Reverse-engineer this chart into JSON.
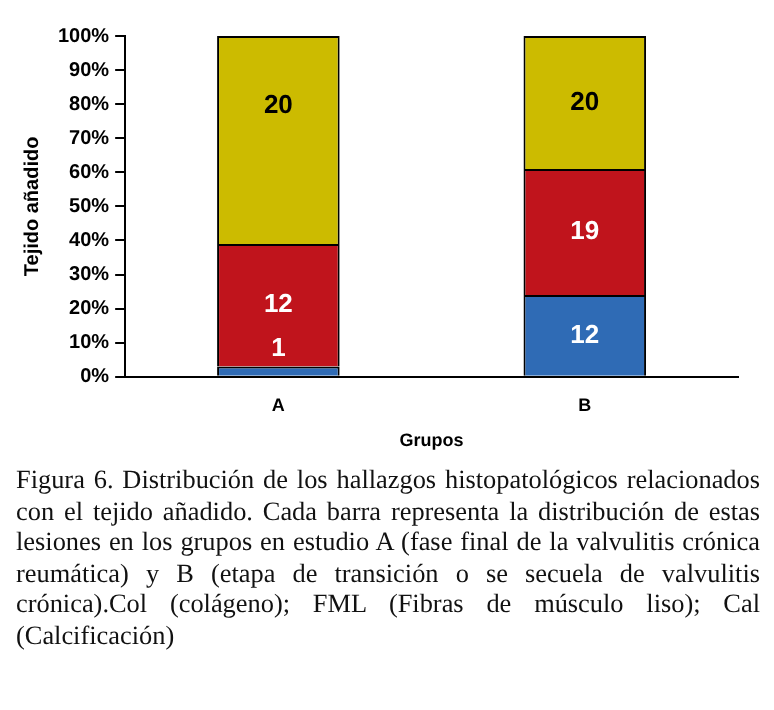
{
  "chart_data": {
    "type": "bar",
    "stacked": true,
    "xlabel": "Grupos",
    "ylabel": "Tejido añadido",
    "categories": [
      "A",
      "B"
    ],
    "series": [
      {
        "color": "#2f6bb5",
        "values": [
          3,
          24
        ]
      },
      {
        "color": "#c0141c",
        "values": [
          36,
          37
        ]
      },
      {
        "color": "#ccbb00",
        "values": [
          61,
          39
        ]
      }
    ],
    "ylim": [
      0,
      100
    ],
    "yticks": [
      {
        "value": 0,
        "label": "0%"
      },
      {
        "value": 10,
        "label": "10%"
      },
      {
        "value": 20,
        "label": "20%"
      },
      {
        "value": 30,
        "label": "30%"
      },
      {
        "value": 40,
        "label": "40%"
      },
      {
        "value": 50,
        "label": "50%"
      },
      {
        "value": 60,
        "label": "60%"
      },
      {
        "value": 70,
        "label": "70%"
      },
      {
        "value": 80,
        "label": "80%"
      },
      {
        "value": 90,
        "label": "90%"
      },
      {
        "value": 100,
        "label": "100%"
      }
    ],
    "grid": false,
    "legend": false,
    "annotations": [
      {
        "text": "1",
        "x": "A",
        "y": 3
      },
      {
        "text": "12",
        "x": "A",
        "y": 39
      },
      {
        "text": "20",
        "x": "A",
        "y": 100
      },
      {
        "text": "12",
        "x": "B",
        "y": 24
      },
      {
        "text": "19",
        "x": "B",
        "y": 61
      },
      {
        "text": "20",
        "x": "B",
        "y": 100
      },
      "Figura 6. Distribución de los hallazgos histopatológicos relacionados con el tejido añadido. Cada barra representa la distribución de estas lesiones en los grupos en estudio A (fase final de la valvulitis crónica reumática) y B (etapa de transición o se secuela de valvulitis crónica).Col (colágeno); FML (Fibras de músculo liso); Cal (Calcificación)"
    ]
  }
}
